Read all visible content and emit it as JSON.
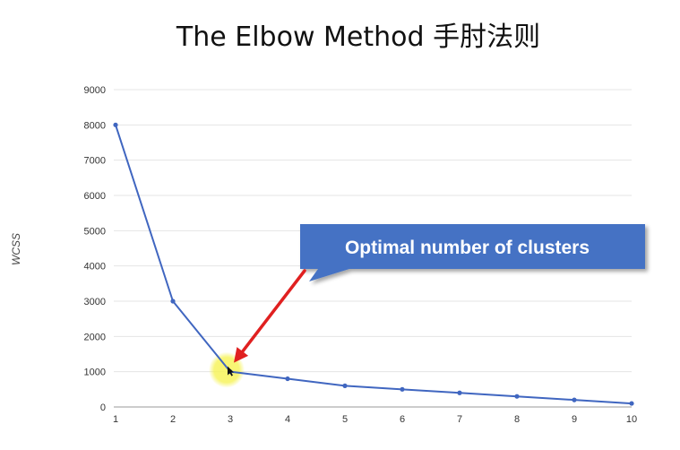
{
  "chart_data": {
    "type": "line",
    "title": "The Elbow Method 手肘法则",
    "xlabel": "",
    "ylabel": "WCSS",
    "x": [
      1,
      2,
      3,
      4,
      5,
      6,
      7,
      8,
      9,
      10
    ],
    "y_ticks": [
      0,
      1000,
      2000,
      3000,
      4000,
      5000,
      6000,
      7000,
      8000,
      9000
    ],
    "ylim": [
      0,
      9000
    ],
    "xlim": [
      1,
      10
    ],
    "grid": true,
    "series": [
      {
        "values": [
          8000,
          3000,
          1000,
          800,
          600,
          500,
          400,
          300,
          200,
          100
        ]
      }
    ],
    "annotation": {
      "text": "Optimal number of clusters",
      "x": 3,
      "y": 1000
    },
    "colors": {
      "line": "#4066c0",
      "callout_fill": "#4472c4",
      "arrow": "#e02020",
      "highlight": "#f5f24a"
    }
  }
}
